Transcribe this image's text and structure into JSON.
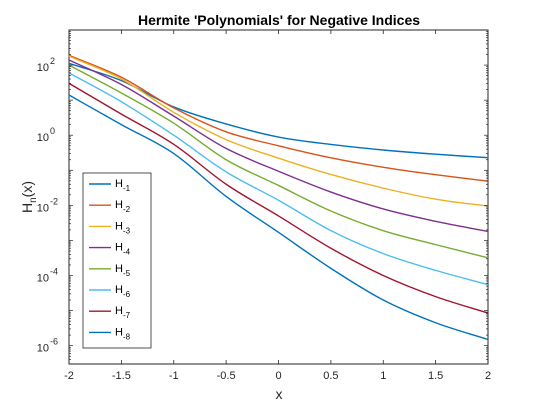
{
  "chart_data": {
    "type": "line",
    "title": "Hermite 'Polynomials' for Negative Indices",
    "xlabel": "x",
    "ylabel": {
      "base": "H",
      "sub": "n",
      "rest": "(x)"
    },
    "xlim": [
      -2,
      2
    ],
    "ylim": [
      3e-07,
      1000
    ],
    "yscale": "log",
    "grid": false,
    "legend_position": "bottom-left",
    "x_ticks": [
      -2,
      -1.5,
      -1,
      -0.5,
      0,
      0.5,
      1,
      1.5,
      2
    ],
    "x_tick_labels": [
      "-2",
      "-1.5",
      "-1",
      "-0.5",
      "0",
      "0.5",
      "1",
      "1.5",
      "2"
    ],
    "y_ticks": [
      {
        "value": 1e-06,
        "base": "10",
        "exp": "-6"
      },
      {
        "value": 0.0001,
        "base": "10",
        "exp": "-4"
      },
      {
        "value": 0.01,
        "base": "10",
        "exp": "-2"
      },
      {
        "value": 1,
        "base": "10",
        "exp": "0"
      },
      {
        "value": 100,
        "base": "10",
        "exp": "2"
      }
    ],
    "x": [
      -2,
      -1.5,
      -1,
      -0.5,
      0,
      0.5,
      1,
      1.5,
      2
    ],
    "series": [
      {
        "name": {
          "base": "H",
          "sub": "-1"
        },
        "color": "#0072BD",
        "values": [
          112,
          36,
          6.4,
          2.1,
          0.886,
          0.545,
          0.379,
          0.287,
          0.229
        ]
      },
      {
        "name": {
          "base": "H",
          "sub": "-2"
        },
        "color": "#D95319",
        "values": [
          190,
          45,
          6.0,
          1.25,
          0.5,
          0.227,
          0.122,
          0.075,
          0.049
        ]
      },
      {
        "name": {
          "base": "H",
          "sub": "-3"
        },
        "color": "#EDB120",
        "values": [
          180,
          40,
          4.5,
          0.75,
          0.222,
          0.076,
          0.031,
          0.015,
          0.0095
        ]
      },
      {
        "name": {
          "base": "H",
          "sub": "-4"
        },
        "color": "#7E2F8E",
        "values": [
          140,
          28,
          3.5,
          0.42,
          0.094,
          0.024,
          0.0079,
          0.0035,
          0.0018
        ]
      },
      {
        "name": {
          "base": "H",
          "sub": "-5"
        },
        "color": "#77AC30",
        "values": [
          100,
          16,
          2.2,
          0.2,
          0.037,
          0.0069,
          0.0019,
          0.00076,
          0.00032
        ]
      },
      {
        "name": {
          "base": "H",
          "sub": "-6"
        },
        "color": "#4DBEEE",
        "values": [
          60,
          9,
          1.0,
          0.09,
          0.014,
          0.0019,
          0.00042,
          0.00014,
          5.5e-05
        ]
      },
      {
        "name": {
          "base": "H",
          "sub": "-7"
        },
        "color": "#A2142F",
        "values": [
          30,
          4,
          0.55,
          0.04,
          0.005,
          0.0006,
          0.0001,
          2.5e-05,
          8.5e-06
        ]
      },
      {
        "name": {
          "base": "H",
          "sub": "-8"
        },
        "color": "#0072BD",
        "values": [
          14,
          2,
          0.3,
          0.018,
          0.0017,
          0.00016,
          2e-05,
          4.5e-06,
          1.5e-06
        ]
      }
    ]
  }
}
